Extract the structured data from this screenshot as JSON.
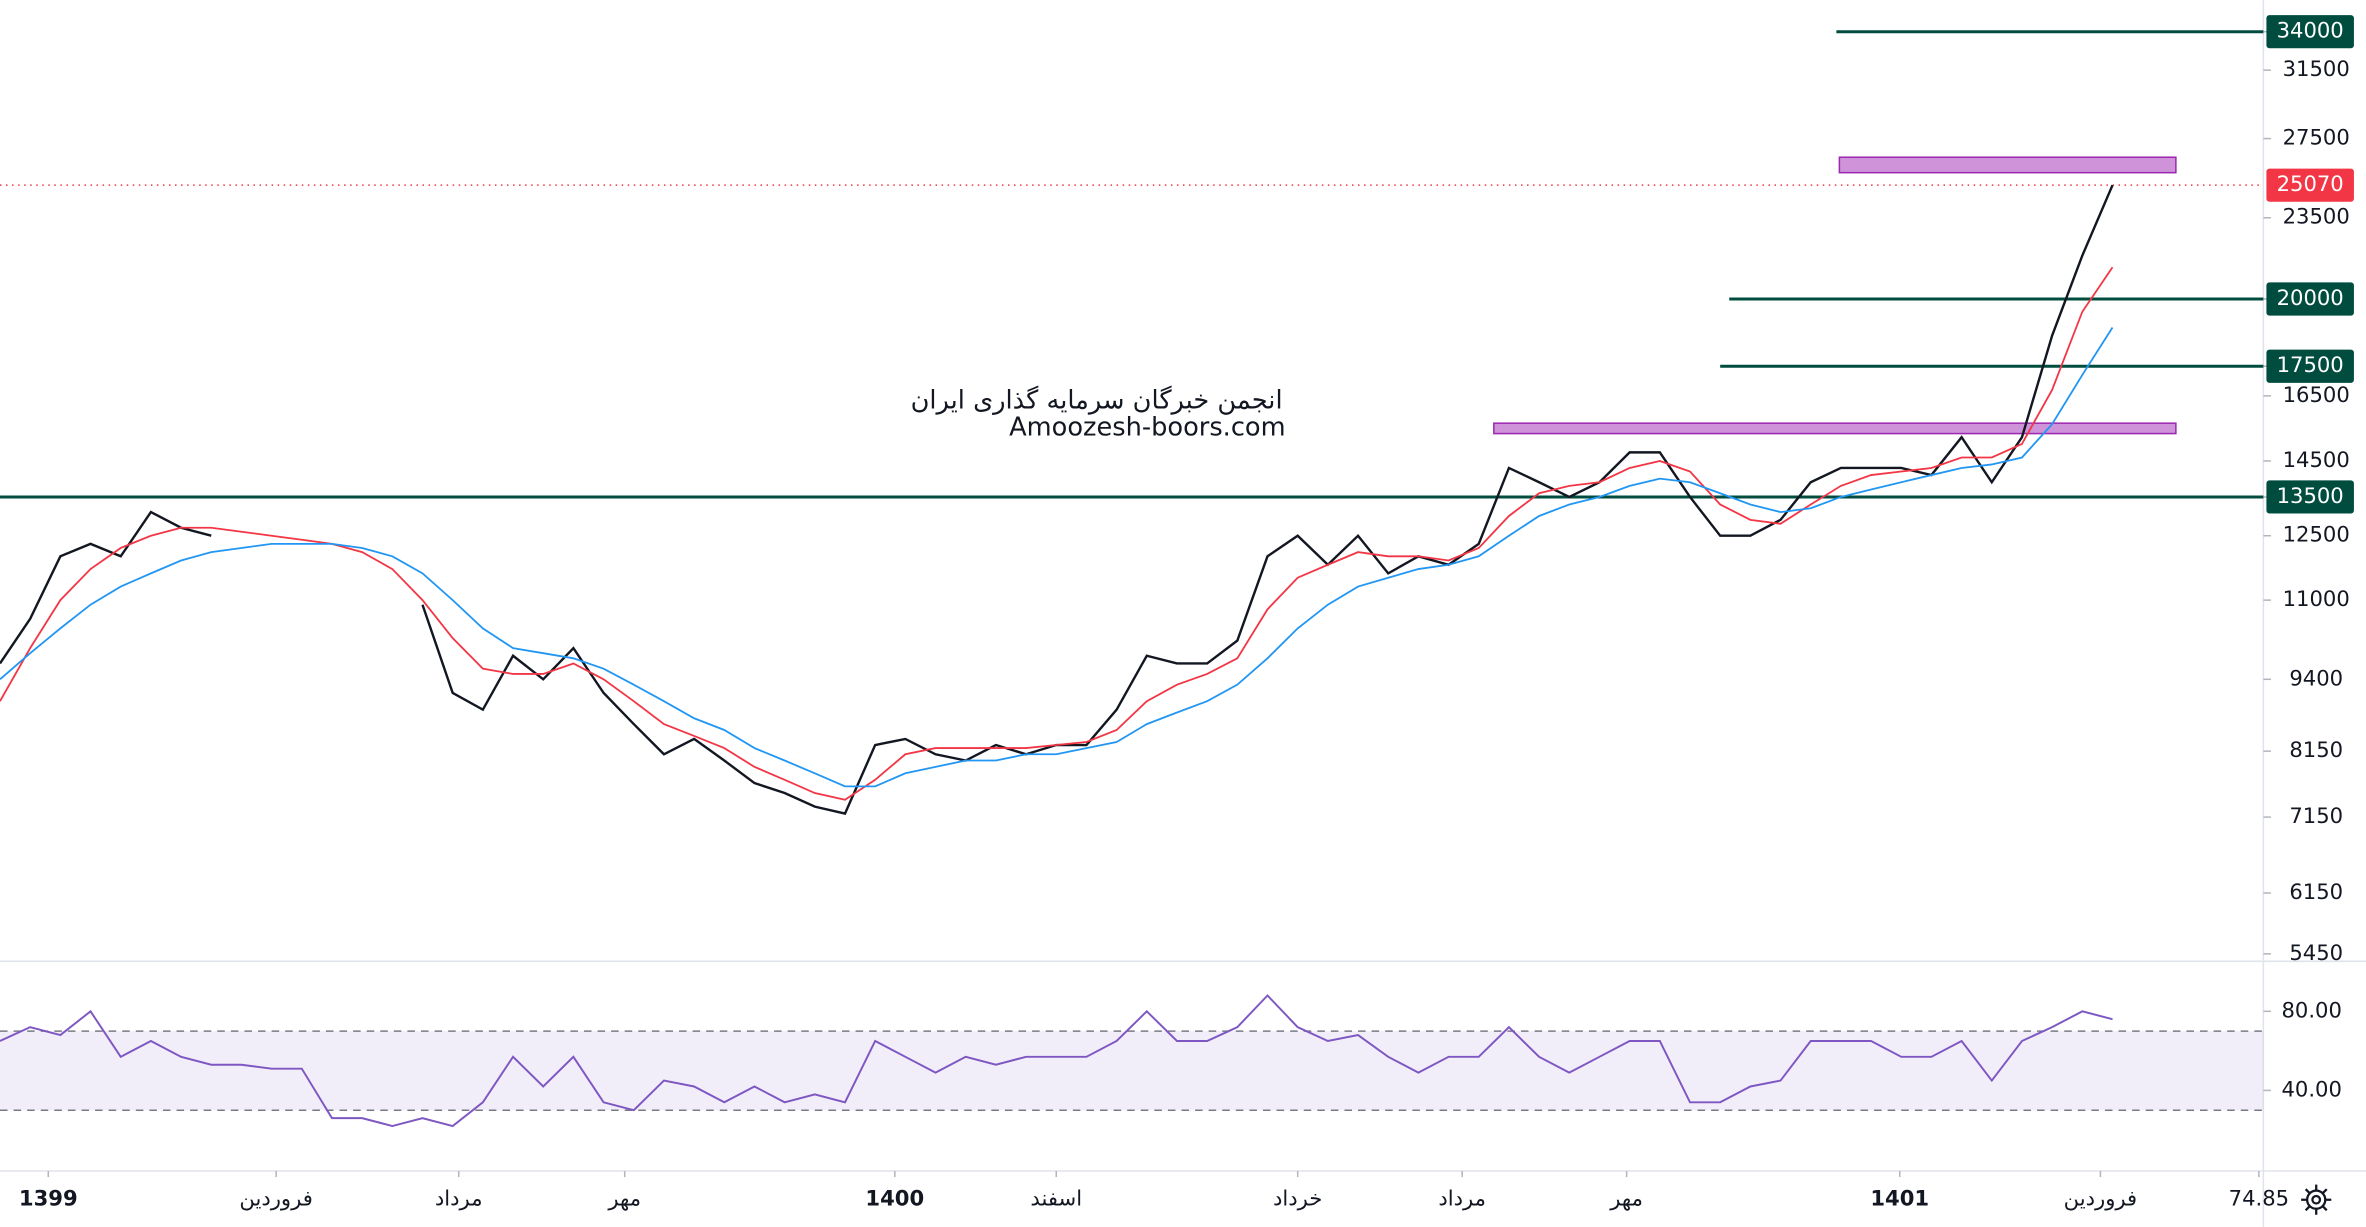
{
  "chart_data": {
    "type": "line",
    "watermark": [
      "انجمن خبرگان سرمایه گذاری ایران",
      "Amoozesh-boors.com"
    ],
    "x": [
      0,
      1,
      2,
      3,
      4,
      5,
      6,
      7,
      8,
      9,
      10,
      11,
      12,
      13,
      14,
      15,
      16,
      17,
      18,
      19,
      20,
      21,
      22,
      23,
      24,
      25,
      26,
      27,
      28,
      29,
      30,
      31,
      32,
      33,
      34,
      35,
      36,
      37,
      38,
      39,
      40,
      41,
      42,
      43,
      44,
      45,
      46,
      47,
      48,
      49,
      50,
      51,
      52,
      53,
      54,
      55,
      56,
      57,
      58,
      59,
      60,
      61,
      62,
      63,
      64,
      65,
      66,
      67,
      68,
      69,
      70
    ],
    "xlim": [
      0,
      75
    ],
    "xticks": [
      {
        "value": 1.6,
        "label": "1399"
      },
      {
        "value": 9.15,
        "label": "فروردین"
      },
      {
        "value": 15.2,
        "label": "مرداد"
      },
      {
        "value": 20.7,
        "label": "مهر"
      },
      {
        "value": 29.65,
        "label": "1400"
      },
      {
        "value": 35,
        "label": "اسفند"
      },
      {
        "value": 43,
        "label": "خرداد"
      },
      {
        "value": 48.45,
        "label": "مرداد"
      },
      {
        "value": 53.9,
        "label": "مهر"
      },
      {
        "value": 62.95,
        "label": "1401"
      },
      {
        "value": 69.6,
        "label": "فروردین"
      },
      74.85
    ],
    "ylim": [
      5370,
      36200
    ],
    "log_y": true,
    "yticks": [
      34000,
      31500,
      27500,
      23500,
      20000,
      17500,
      16500,
      14500,
      13500,
      12500,
      11000,
      9400,
      8150,
      7150,
      6150,
      5450
    ],
    "series": [
      {
        "color": "#131722",
        "values": [
          9700,
          10600,
          12000,
          12300,
          12000,
          13100,
          12700,
          12500,
          null,
          null,
          null,
          null,
          null,
          null,
          10900,
          9150,
          8850,
          9850,
          9400,
          10000,
          9150,
          8600,
          8100,
          8350,
          8000,
          7650,
          7500,
          7300,
          7200,
          8250,
          8350,
          8100,
          8000,
          8250,
          8100,
          8250,
          8250,
          8850,
          9850,
          9700,
          9700,
          10150,
          12000,
          12500,
          11800,
          12500,
          11600,
          12000,
          11800,
          12300,
          14300,
          13900,
          13500,
          13900,
          14750,
          14750,
          13500,
          12500,
          12500,
          12900,
          13900,
          14300,
          14300,
          14300,
          14100,
          15200,
          13900,
          15200,
          18600,
          21800,
          25070
        ]
      },
      {
        "color": "#f23645",
        "values": [
          9000,
          10000,
          11000,
          11700,
          12200,
          12500,
          12700,
          12700,
          12600,
          12500,
          12400,
          12300,
          12100,
          11700,
          11000,
          10200,
          9600,
          9500,
          9500,
          9700,
          9400,
          9000,
          8600,
          8400,
          8200,
          7900,
          7700,
          7500,
          7400,
          7700,
          8100,
          8200,
          8200,
          8200,
          8200,
          8250,
          8300,
          8500,
          9000,
          9300,
          9500,
          9800,
          10800,
          11500,
          11800,
          12100,
          12000,
          12000,
          11900,
          12200,
          13000,
          13600,
          13800,
          13900,
          14300,
          14500,
          14200,
          13300,
          12900,
          12800,
          13300,
          13800,
          14100,
          14200,
          14300,
          14600,
          14600,
          15000,
          16700,
          19500,
          21300
        ]
      },
      {
        "color": "#2196f3",
        "values": [
          9400,
          9900,
          10400,
          10900,
          11300,
          11600,
          11900,
          12100,
          12200,
          12300,
          12300,
          12300,
          12200,
          12000,
          11600,
          11000,
          10400,
          10000,
          9900,
          9800,
          9600,
          9300,
          9000,
          8700,
          8500,
          8200,
          8000,
          7800,
          7600,
          7600,
          7800,
          7900,
          8000,
          8000,
          8100,
          8100,
          8200,
          8300,
          8600,
          8800,
          9000,
          9300,
          9800,
          10400,
          10900,
          11300,
          11500,
          11700,
          11800,
          12000,
          12500,
          13000,
          13300,
          13500,
          13800,
          14000,
          13900,
          13600,
          13300,
          13100,
          13200,
          13500,
          13700,
          13900,
          14100,
          14300,
          14400,
          14600,
          15600,
          17200,
          18900
        ]
      }
    ],
    "levels": [
      {
        "value": 34000,
        "from": 60.85
      },
      {
        "value": 20000,
        "from": 57.3
      },
      {
        "value": 17500,
        "from": 57
      },
      {
        "value": 13500,
        "from": 0
      }
    ],
    "level_color": "#004d40",
    "last_price": 25070,
    "last_price_color": "#f23645",
    "zones": [
      {
        "low": 25700,
        "high": 26500,
        "from": 60.95,
        "to": 72.1
      },
      {
        "low": 15310,
        "high": 15630,
        "from": 49.5,
        "to": 72.1
      }
    ],
    "zone_color": "#ce93d8",
    "rsi": {
      "color": "#7e57c2",
      "ylim": [
        0,
        103
      ],
      "yticks": [
        {
          "value": 80,
          "label": "80.00"
        },
        {
          "value": 40,
          "label": "40.00"
        }
      ],
      "band": [
        30,
        70
      ],
      "values": [
        65,
        72,
        68,
        80,
        57,
        65,
        57,
        53,
        53,
        51,
        51,
        26,
        26,
        22,
        26,
        22,
        34,
        57,
        42,
        57,
        34,
        30,
        45,
        42,
        34,
        42,
        34,
        38,
        34,
        65,
        57,
        49,
        57,
        53,
        57,
        57,
        57,
        65,
        80,
        65,
        65,
        72,
        88,
        72,
        65,
        68,
        57,
        49,
        57,
        57,
        72,
        57,
        49,
        57,
        65,
        65,
        34,
        34,
        42,
        45,
        65,
        65,
        65,
        57,
        57,
        65,
        45,
        65,
        72,
        80,
        76
      ]
    }
  }
}
